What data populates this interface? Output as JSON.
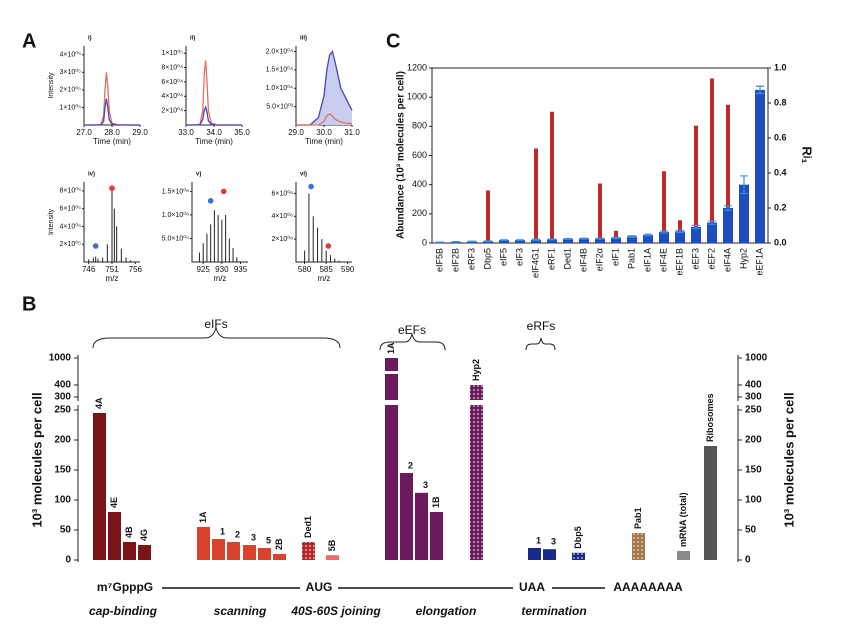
{
  "panels": [
    "A",
    "B",
    "C"
  ],
  "chart_data": [
    {
      "type": "line",
      "title": "i)",
      "ylabel": "Intensity",
      "xlabel": "Time (min)",
      "xlim": [
        27,
        29
      ],
      "xticks": [
        {
          "value": 27,
          "label": "27.0"
        },
        {
          "value": 28,
          "label": "28.0"
        },
        {
          "value": 29,
          "label": "29.0"
        }
      ],
      "ylim": [
        0,
        450000
      ],
      "yticks": [
        {
          "value": 100000,
          "label": "1×10⁰⁵"
        },
        {
          "value": 200000,
          "label": "2×10⁰⁵"
        },
        {
          "value": 300000,
          "label": "3×10⁰⁵"
        },
        {
          "value": 400000,
          "label": "4×10⁰⁵"
        }
      ],
      "x": [
        27,
        27.4,
        27.6,
        27.7,
        27.75,
        27.8,
        27.85,
        27.9,
        28,
        28.2,
        28.5,
        29
      ],
      "series": [
        {
          "color": "#e0705e",
          "values": [
            0,
            0,
            2000,
            50000,
            200000,
            300000,
            220000,
            80000,
            10000,
            2000,
            0,
            0
          ]
        },
        {
          "color": "#4a46b8",
          "values": [
            0,
            0,
            1000,
            20000,
            100000,
            150000,
            100000,
            30000,
            5000,
            0,
            0,
            0
          ]
        }
      ]
    },
    {
      "type": "line",
      "title": "ii)",
      "xlabel": "Time (min)",
      "xlim": [
        33,
        35
      ],
      "xticks": [
        {
          "value": 33,
          "label": "33.0"
        },
        {
          "value": 34,
          "label": "34.0"
        },
        {
          "value": 35,
          "label": "35.0"
        }
      ],
      "ylim": [
        0,
        110000
      ],
      "yticks": [
        {
          "value": 20000,
          "label": "2×10⁰⁴"
        },
        {
          "value": 40000,
          "label": "4×10⁰⁴"
        },
        {
          "value": 60000,
          "label": "6×10⁰⁴"
        },
        {
          "value": 80000,
          "label": "8×10⁰⁴"
        },
        {
          "value": 100000,
          "label": "1×10⁰⁵"
        }
      ],
      "x": [
        33,
        33.3,
        33.5,
        33.6,
        33.65,
        33.7,
        33.75,
        33.8,
        33.9,
        34.1,
        34.5,
        35
      ],
      "series": [
        {
          "color": "#e0705e",
          "values": [
            0,
            0,
            1000,
            20000,
            70000,
            90000,
            60000,
            20000,
            3000,
            0,
            0,
            0
          ]
        },
        {
          "color": "#4a46b8",
          "values": [
            0,
            0,
            500,
            8000,
            20000,
            25000,
            18000,
            6000,
            1000,
            0,
            0,
            0
          ]
        }
      ]
    },
    {
      "type": "line",
      "title": "iii)",
      "xlabel": "Time (min)",
      "xlim": [
        29,
        31
      ],
      "xticks": [
        {
          "value": 29,
          "label": "29.0"
        },
        {
          "value": 30,
          "label": "30.0"
        },
        {
          "value": 31,
          "label": "31.0"
        }
      ],
      "ylim": [
        0,
        21500
      ],
      "yticks": [
        {
          "value": 5000,
          "label": "5.0×10⁰³"
        },
        {
          "value": 10000,
          "label": "1.0×10⁰⁴"
        },
        {
          "value": 15000,
          "label": "1.5×10⁰⁴"
        },
        {
          "value": 20000,
          "label": "2.0×10⁰⁴"
        }
      ],
      "x": [
        29,
        29.5,
        29.8,
        30,
        30.1,
        30.2,
        30.3,
        30.4,
        30.6,
        30.8,
        31
      ],
      "series": [
        {
          "color": "#4a46b8",
          "fill": "#c9cdf0",
          "values": [
            0,
            0,
            2000,
            8000,
            15000,
            19000,
            20000,
            17000,
            10000,
            7000,
            4000
          ]
        },
        {
          "color": "#e0705e",
          "values": [
            0,
            0,
            0,
            1000,
            2500,
            3000,
            2500,
            1500,
            800,
            500,
            300
          ]
        }
      ]
    },
    {
      "type": "stem",
      "title": "iv)",
      "ylabel": "Intensity",
      "xlabel": "m/z",
      "color": "#222",
      "xlim": [
        745,
        757
      ],
      "xticks": [
        746,
        751,
        756
      ],
      "ylim": [
        0,
        900000
      ],
      "yticks": [
        {
          "value": 200000,
          "label": "2×10⁰⁵"
        },
        {
          "value": 400000,
          "label": "4×10⁰⁵"
        },
        {
          "value": 600000,
          "label": "6×10⁰⁵"
        },
        {
          "value": 800000,
          "label": "8×10⁰⁵"
        }
      ],
      "x": [
        746,
        747,
        747.5,
        748,
        749,
        750,
        751,
        751.5,
        752,
        753,
        754,
        755
      ],
      "values": [
        30000,
        50000,
        60000,
        40000,
        50000,
        200000,
        800000,
        600000,
        400000,
        150000,
        50000,
        20000
      ],
      "markers": {
        "x": [
          747.5,
          751
        ],
        "values": [
          180000,
          830000
        ],
        "colors": [
          "#3a6fd8",
          "#e03a3a"
        ]
      }
    },
    {
      "type": "stem",
      "title": "v)",
      "xlabel": "m/z",
      "color": "#222",
      "xlim": [
        922,
        937
      ],
      "xticks": [
        925,
        930,
        935
      ],
      "ylim": [
        0,
        1700000
      ],
      "yticks": [
        {
          "value": 500000,
          "label": "5.0×10⁰⁵"
        },
        {
          "value": 1000000,
          "label": "1.0×10⁰⁶"
        },
        {
          "value": 1500000,
          "label": "1.5×10⁰⁶"
        }
      ],
      "x": [
        924,
        925,
        926,
        927,
        928,
        929,
        930,
        931,
        932,
        933,
        934
      ],
      "values": [
        200000,
        400000,
        600000,
        800000,
        1100000,
        1000000,
        900000,
        1000000,
        500000,
        300000,
        100000
      ],
      "markers": {
        "x": [
          927,
          930.5
        ],
        "values": [
          1300000,
          1500000
        ],
        "colors": [
          "#3a6fd8",
          "#e03a3a"
        ]
      }
    },
    {
      "type": "stem",
      "title": "vi)",
      "xlabel": "m/z",
      "color": "#222",
      "xlim": [
        578,
        591
      ],
      "xticks": [
        580,
        585,
        590
      ],
      "ylim": [
        0,
        7000000
      ],
      "yticks": [
        {
          "value": 2000000,
          "label": "2×10⁰⁶"
        },
        {
          "value": 4000000,
          "label": "4×10⁰⁶"
        },
        {
          "value": 6000000,
          "label": "6×10⁰⁶"
        }
      ],
      "x": [
        580,
        581,
        582,
        583,
        584,
        585,
        586,
        587,
        588
      ],
      "values": [
        1000000,
        6000000,
        4000000,
        3000000,
        2000000,
        1000000,
        600000,
        300000,
        100000
      ],
      "markers": {
        "x": [
          581.5,
          585.5
        ],
        "values": [
          6600000,
          1400000
        ],
        "colors": [
          "#3a6fd8",
          "#e03a3a"
        ]
      }
    },
    {
      "type": "bar",
      "ylabel": "10³ molecules per cell",
      "axis_break": true,
      "ylim": [
        0,
        1000
      ],
      "yticks": [
        0,
        50,
        100,
        150,
        200,
        250,
        300,
        400,
        1000
      ],
      "categories": [
        "4A",
        "4E",
        "4B",
        "4G",
        "1A",
        "1",
        "2",
        "3",
        "5",
        "2B",
        "Ded1",
        "5B",
        "1A",
        "2",
        "3",
        "1B",
        "Hyp2",
        "1",
        "3",
        "Dbp5",
        "Pab1",
        "mRNA (total)",
        "Ribosomes"
      ],
      "values": [
        245,
        80,
        30,
        25,
        55,
        35,
        30,
        25,
        20,
        10,
        30,
        8,
        1000,
        145,
        112,
        80,
        400,
        20,
        18,
        12,
        45,
        15,
        190
      ],
      "colors": [
        "#7b1416",
        "#7b1416",
        "#7b1416",
        "#7b1416",
        "#d9422b",
        "#d9422b",
        "#d9422b",
        "#d9422b",
        "#d9422b",
        "#d9422b",
        "#b0262a",
        "#f06a6a",
        "#6b1a5e",
        "#6b1a5e",
        "#6b1a5e",
        "#6b1a5e",
        "#6b1a5e",
        "#1a2a8a",
        "#1a2a8a",
        "#1a2a8a",
        "#a5764a",
        "#8a8a8a",
        "#555555"
      ],
      "patterned": [
        false,
        false,
        false,
        false,
        false,
        false,
        false,
        false,
        false,
        false,
        true,
        false,
        false,
        false,
        false,
        false,
        true,
        false,
        false,
        true,
        true,
        false,
        false
      ],
      "groups": [
        "eIFs",
        "eEFs",
        "eRFs"
      ],
      "landmarks": [
        "m⁷GpppG",
        "AUG",
        "UAA",
        "AAAAAAAA"
      ],
      "stages": [
        "cap-binding",
        "scanning",
        "40S-60S joining",
        "elongation",
        "termination"
      ]
    },
    {
      "type": "bar",
      "ylabel": "Abundance (10³ molecules per cell)",
      "y2label": "Rʲ₁",
      "ylim": [
        0,
        1200
      ],
      "yticks": [
        0,
        200,
        400,
        600,
        800,
        1000,
        1200
      ],
      "y2lim": [
        0,
        1
      ],
      "y2ticks": [
        {
          "value": 0,
          "label": "0.0"
        },
        0.2,
        0.4,
        0.6,
        0.8,
        {
          "value": 1,
          "label": "1.0"
        }
      ],
      "categories": [
        "eIF5B",
        "eIF2B",
        "eRF3",
        "Dbp5",
        "eIF5",
        "eIF3",
        "eIF4G1",
        "eRF1",
        "Ded1",
        "eIF4B",
        "eIF2α",
        "eIF1",
        "Pab1",
        "eIF1A",
        "eIF4E",
        "eEF1B",
        "eEF3",
        "eEF2",
        "eIF4A",
        "Hyp2",
        "eEF1A"
      ],
      "series": [
        {
          "axis": "y2",
          "color": "#c0282a",
          "values": [
            0,
            0.01,
            0.01,
            0.3,
            0.01,
            0.01,
            0.54,
            0.75,
            0.01,
            0.02,
            0.34,
            0.07,
            0.01,
            0.02,
            0.41,
            0.13,
            0.67,
            0.94,
            0.79,
            0.33,
            0.85
          ]
        },
        {
          "axis": "y",
          "color": "#1f4fbf",
          "values": [
            5,
            8,
            10,
            12,
            20,
            20,
            22,
            25,
            28,
            30,
            30,
            35,
            45,
            55,
            75,
            80,
            110,
            140,
            240,
            400,
            1050
          ],
          "errors": [
            1,
            1,
            2,
            2,
            2,
            2,
            3,
            3,
            3,
            3,
            3,
            4,
            5,
            5,
            6,
            8,
            10,
            12,
            15,
            60,
            25
          ]
        }
      ]
    }
  ]
}
